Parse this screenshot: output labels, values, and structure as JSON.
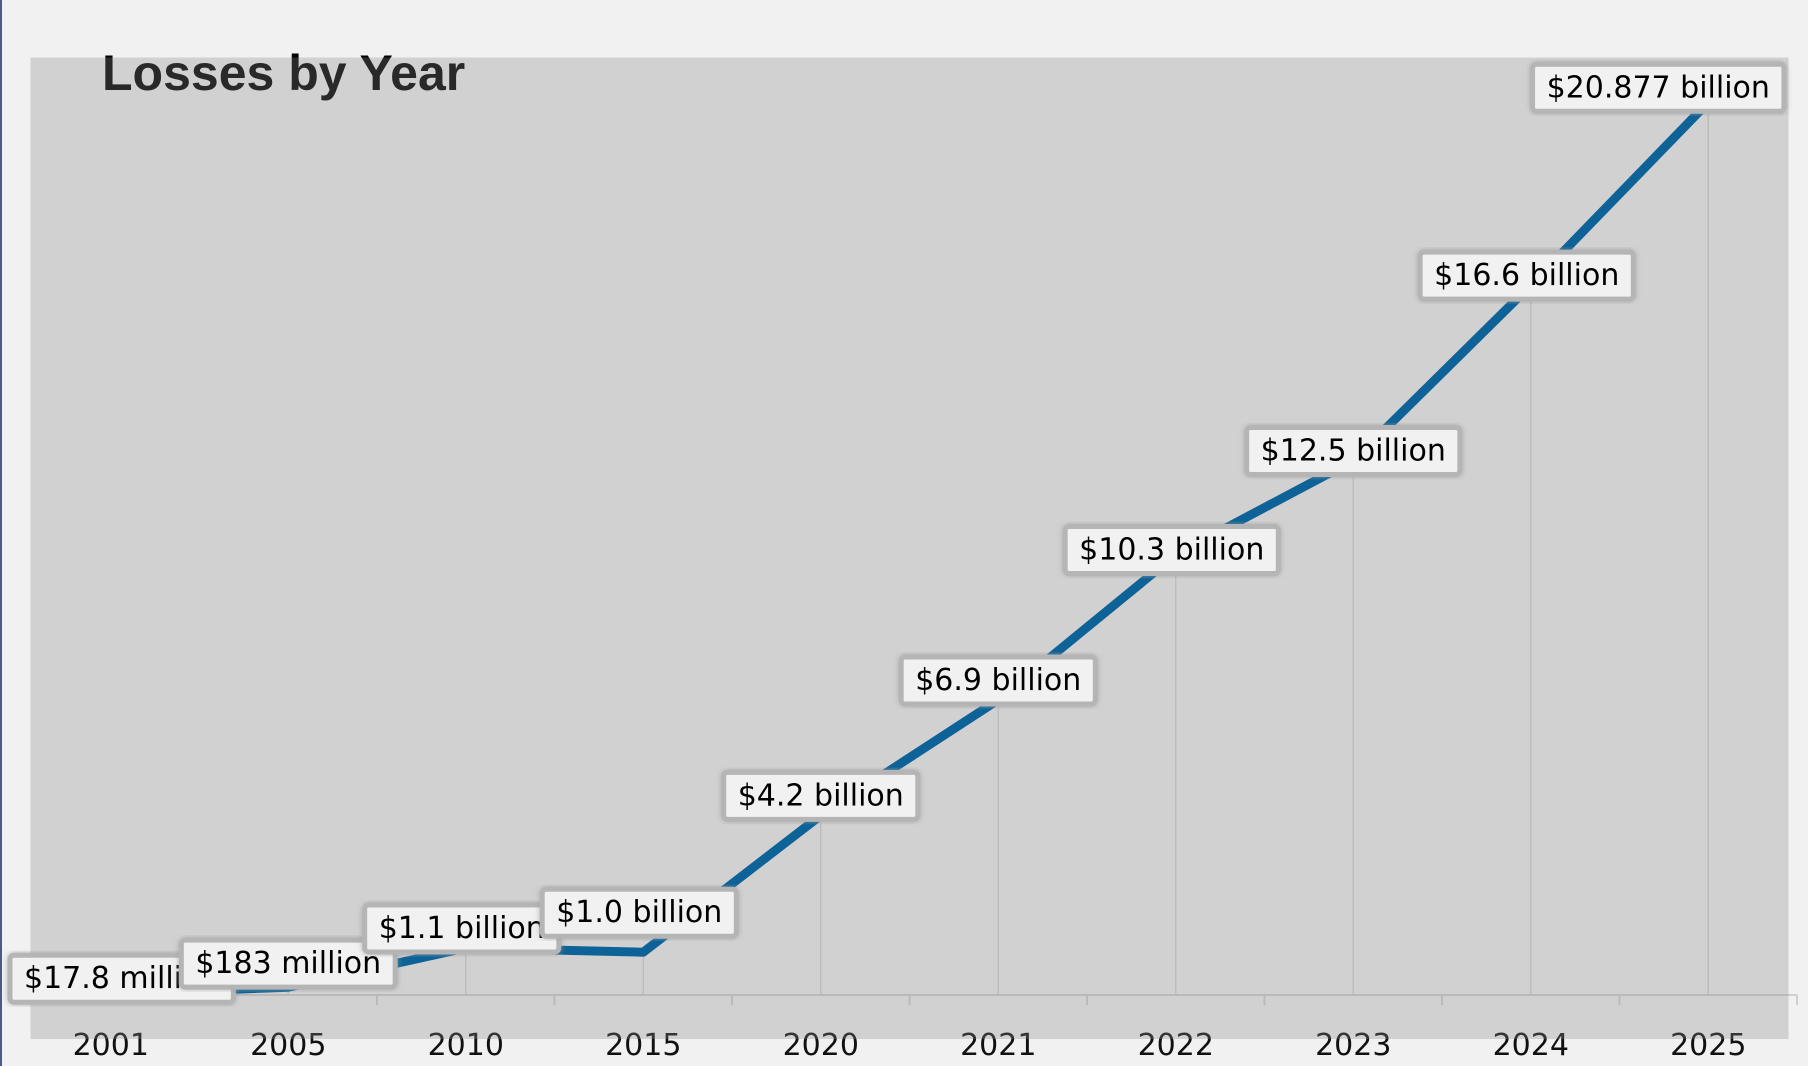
{
  "chart_data": {
    "type": "line",
    "title": "Losses by Year",
    "xlabel": "",
    "ylabel": "",
    "categories": [
      "2001",
      "2005",
      "2010",
      "2015",
      "2020",
      "2021",
      "2022",
      "2023",
      "2024",
      "2025"
    ],
    "series": [
      {
        "values_billions": [
          0.0178,
          0.183,
          1.1,
          1.0,
          4.2,
          6.9,
          10.3,
          12.5,
          16.6,
          20.877
        ],
        "data_labels": [
          "$17.8 million",
          "$183 million",
          "$1.1 billion",
          "$1.0 billion",
          "$4.2 billion",
          "$6.9 billion",
          "$10.3 billion",
          "$12.5 billion",
          "$16.6 billion",
          "$20.877 billion"
        ],
        "color": "#0f6497"
      }
    ],
    "ylim": [
      0,
      21
    ],
    "grid": "vertical",
    "legend": "none",
    "colors": {
      "background": "#f1f1f1",
      "line": "#0f6497",
      "grid": "#d4d4d4"
    }
  }
}
